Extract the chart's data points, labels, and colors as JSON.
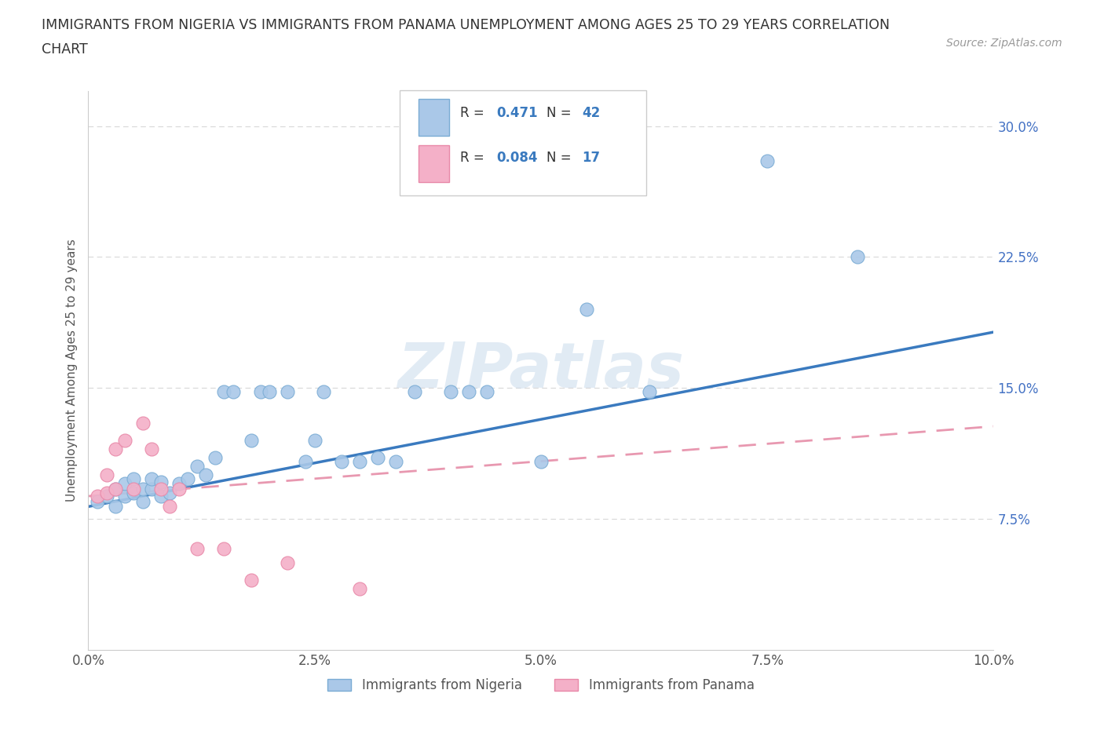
{
  "title_line1": "IMMIGRANTS FROM NIGERIA VS IMMIGRANTS FROM PANAMA UNEMPLOYMENT AMONG AGES 25 TO 29 YEARS CORRELATION",
  "title_line2": "CHART",
  "source": "Source: ZipAtlas.com",
  "nigeria": {
    "R": 0.471,
    "N": 42,
    "color": "#aac8e8",
    "color_edge": "#7aacd4",
    "x": [
      0.001,
      0.002,
      0.003,
      0.003,
      0.004,
      0.004,
      0.005,
      0.005,
      0.006,
      0.006,
      0.007,
      0.007,
      0.008,
      0.008,
      0.009,
      0.01,
      0.011,
      0.012,
      0.013,
      0.014,
      0.015,
      0.016,
      0.018,
      0.019,
      0.02,
      0.022,
      0.024,
      0.025,
      0.026,
      0.028,
      0.03,
      0.032,
      0.034,
      0.036,
      0.04,
      0.042,
      0.044,
      0.05,
      0.055,
      0.062,
      0.075,
      0.085
    ],
    "y": [
      0.085,
      0.088,
      0.082,
      0.092,
      0.088,
      0.095,
      0.09,
      0.098,
      0.085,
      0.092,
      0.092,
      0.098,
      0.088,
      0.096,
      0.09,
      0.095,
      0.098,
      0.105,
      0.1,
      0.11,
      0.148,
      0.148,
      0.12,
      0.148,
      0.148,
      0.148,
      0.108,
      0.12,
      0.148,
      0.108,
      0.108,
      0.11,
      0.108,
      0.148,
      0.148,
      0.148,
      0.148,
      0.108,
      0.195,
      0.148,
      0.28,
      0.225
    ]
  },
  "panama": {
    "R": 0.084,
    "N": 17,
    "color": "#f4b0c8",
    "color_edge": "#e888a8",
    "x": [
      0.001,
      0.002,
      0.002,
      0.003,
      0.003,
      0.004,
      0.005,
      0.006,
      0.007,
      0.008,
      0.009,
      0.01,
      0.012,
      0.015,
      0.018,
      0.022,
      0.03
    ],
    "y": [
      0.088,
      0.09,
      0.1,
      0.092,
      0.115,
      0.12,
      0.092,
      0.13,
      0.115,
      0.092,
      0.082,
      0.092,
      0.058,
      0.058,
      0.04,
      0.05,
      0.035
    ]
  },
  "xlim": [
    0.0,
    0.1
  ],
  "ylim": [
    0.0,
    0.32
  ],
  "xticks": [
    0.0,
    0.025,
    0.05,
    0.075,
    0.1
  ],
  "xticklabels": [
    "0.0%",
    "2.5%",
    "5.0%",
    "7.5%",
    "10.0%"
  ],
  "ytick_positions": [
    0.075,
    0.15,
    0.225,
    0.3
  ],
  "ytick_labels": [
    "7.5%",
    "15.0%",
    "22.5%",
    "30.0%"
  ],
  "ylabel": "Unemployment Among Ages 25 to 29 years",
  "trend_nigeria_color": "#3a7abf",
  "trend_panama_color": "#e898b0",
  "nigeria_trend_x0": 0.0,
  "nigeria_trend_y0": 0.082,
  "nigeria_trend_x1": 0.1,
  "nigeria_trend_y1": 0.182,
  "panama_trend_x0": 0.0,
  "panama_trend_y0": 0.088,
  "panama_trend_x1": 0.1,
  "panama_trend_y1": 0.128,
  "watermark": "ZIPatlas",
  "background_color": "#ffffff",
  "grid_color": "#d8d8d8"
}
